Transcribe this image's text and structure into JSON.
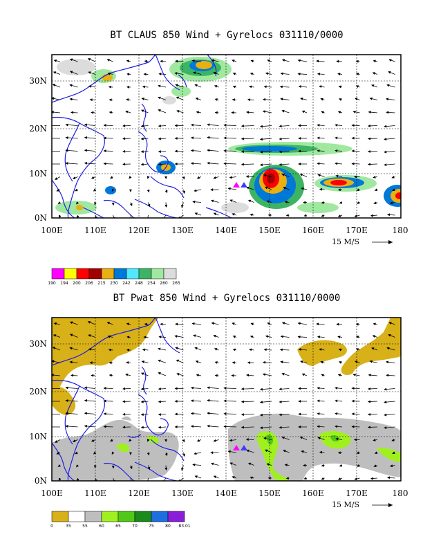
{
  "panels": [
    {
      "id": "top",
      "title": "BT CLAUS 850 Wind + Gyrelocs 031110/0000",
      "lat_labels": [
        "30N",
        "20N",
        "10N",
        "0N"
      ],
      "lon_labels": [
        "100E",
        "110E",
        "120E",
        "130E",
        "140E",
        "150E",
        "160E",
        "170E",
        "180"
      ],
      "vector_ref": "15 M/S",
      "colorbar": {
        "colors": [
          "#ff00ff",
          "#ffff00",
          "#ff0000",
          "#a00000",
          "#e8b010",
          "#0078d8",
          "#50e8ff",
          "#3cb464",
          "#a0e8a0",
          "#dcdcdc"
        ],
        "labels": [
          "190",
          "194",
          "200",
          "206",
          "215",
          "230",
          "242",
          "248",
          "254",
          "260",
          "265"
        ]
      },
      "markers": [
        {
          "name": "magenta-triangle",
          "color": "#ff00ff",
          "lon": 142.0,
          "lat": 7.5
        },
        {
          "name": "blue-triangle",
          "color": "#3c3cff",
          "lon": 143.4,
          "lat": 7.5
        }
      ]
    },
    {
      "id": "bottom",
      "title": "BT Pwat 850 Wind + Gyrelocs 031110/0000",
      "lat_labels": [
        "30N",
        "20N",
        "10N",
        "0N"
      ],
      "lon_labels": [
        "100E",
        "110E",
        "120E",
        "130E",
        "140E",
        "150E",
        "160E",
        "170E",
        "180"
      ],
      "vector_ref": "15 M/S",
      "colorbar": {
        "colors": [
          "#d8b018",
          "#ffffff",
          "#bebebe",
          "#a0f020",
          "#50c818",
          "#1a8a1a",
          "#1e6ee0",
          "#8a1ed8"
        ],
        "labels": [
          "0",
          "35",
          "55",
          "60",
          "65",
          "70",
          "75",
          "80",
          "83.01"
        ]
      },
      "markers": [
        {
          "name": "magenta-triangle",
          "color": "#ff00ff",
          "lon": 142.0,
          "lat": 7.5
        },
        {
          "name": "blue-triangle",
          "color": "#3c3cff",
          "lon": 143.4,
          "lat": 7.5
        }
      ]
    }
  ]
}
